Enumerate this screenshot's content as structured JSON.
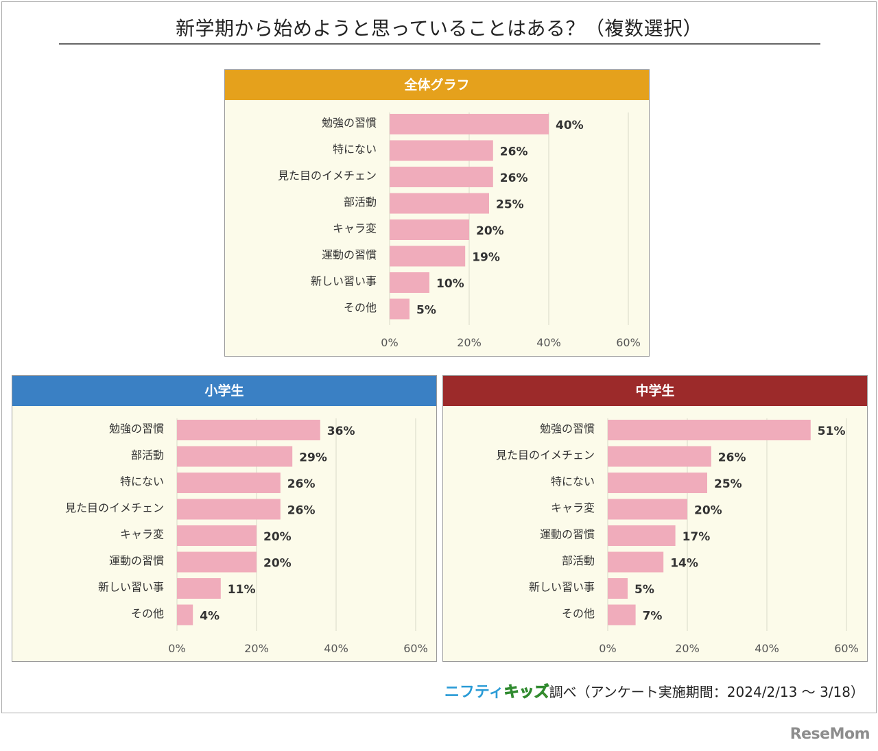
{
  "title": "新学期から始めようと思っていることはある？（複数選択）",
  "footer": {
    "brand_part1": "ニフティ",
    "brand_part2": "キッズ",
    "source_text": "調べ（アンケート実施期間：2024/2/13 ～ 3/18）",
    "watermark": "ReseMom"
  },
  "colors": {
    "overall_header": "#e5a11c",
    "elementary_header": "#3a80c4",
    "middle_header": "#9c2a2a",
    "bar": "#f0acbb",
    "panel_bg": "#fcfbea"
  },
  "chart_data": [
    {
      "type": "bar",
      "orientation": "horizontal",
      "title": "全体グラフ",
      "categories": [
        "勉強の習慣",
        "特にない",
        "見た目のイメチェン",
        "部活動",
        "キャラ変",
        "運動の習慣",
        "新しい習い事",
        "その他"
      ],
      "values": [
        40,
        26,
        26,
        25,
        20,
        19,
        10,
        5
      ],
      "value_labels": [
        "40%",
        "26%",
        "26%",
        "25%",
        "20%",
        "19%",
        "10%",
        "5%"
      ],
      "xlim": [
        0,
        60
      ],
      "xticks": [
        "0%",
        "20%",
        "40%",
        "60%"
      ],
      "grid": true
    },
    {
      "type": "bar",
      "orientation": "horizontal",
      "title": "小学生",
      "categories": [
        "勉強の習慣",
        "部活動",
        "特にない",
        "見た目のイメチェン",
        "キャラ変",
        "運動の習慣",
        "新しい習い事",
        "その他"
      ],
      "values": [
        36,
        29,
        26,
        26,
        20,
        20,
        11,
        4
      ],
      "value_labels": [
        "36%",
        "29%",
        "26%",
        "26%",
        "20%",
        "20%",
        "11%",
        "4%"
      ],
      "xlim": [
        0,
        60
      ],
      "xticks": [
        "0%",
        "20%",
        "40%",
        "60%"
      ],
      "grid": true
    },
    {
      "type": "bar",
      "orientation": "horizontal",
      "title": "中学生",
      "categories": [
        "勉強の習慣",
        "見た目のイメチェン",
        "特にない",
        "キャラ変",
        "運動の習慣",
        "部活動",
        "新しい習い事",
        "その他"
      ],
      "values": [
        51,
        26,
        25,
        20,
        17,
        14,
        5,
        7
      ],
      "value_labels": [
        "51%",
        "26%",
        "25%",
        "20%",
        "17%",
        "14%",
        "5%",
        "7%"
      ],
      "xlim": [
        0,
        60
      ],
      "xticks": [
        "0%",
        "20%",
        "40%",
        "60%"
      ],
      "grid": true
    }
  ]
}
